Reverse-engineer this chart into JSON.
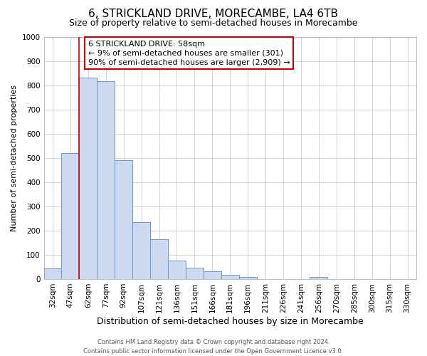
{
  "title": "6, STRICKLAND DRIVE, MORECAMBE, LA4 6TB",
  "subtitle": "Size of property relative to semi-detached houses in Morecambe",
  "xlabel": "Distribution of semi-detached houses by size in Morecambe",
  "ylabel": "Number of semi-detached properties",
  "categories": [
    "32sqm",
    "47sqm",
    "62sqm",
    "77sqm",
    "92sqm",
    "107sqm",
    "121sqm",
    "136sqm",
    "151sqm",
    "166sqm",
    "181sqm",
    "196sqm",
    "211sqm",
    "226sqm",
    "241sqm",
    "256sqm",
    "270sqm",
    "285sqm",
    "300sqm",
    "315sqm",
    "330sqm"
  ],
  "values": [
    43,
    520,
    830,
    815,
    490,
    235,
    163,
    75,
    47,
    33,
    18,
    10,
    0,
    0,
    0,
    8,
    0,
    0,
    0,
    0,
    0
  ],
  "bar_color": "#ccd9f0",
  "bar_edge_color": "#6699cc",
  "vline_color": "#cc0000",
  "vline_x": 1.5,
  "annotation_line1": "6 STRICKLAND DRIVE: 58sqm",
  "annotation_line2": "← 9% of semi-detached houses are smaller (301)",
  "annotation_line3": "90% of semi-detached houses are larger (2,909) →",
  "annotation_box_facecolor": "#ffffff",
  "annotation_box_edgecolor": "#cc0000",
  "ylim": [
    0,
    1000
  ],
  "yticks": [
    0,
    100,
    200,
    300,
    400,
    500,
    600,
    700,
    800,
    900,
    1000
  ],
  "footer_line1": "Contains HM Land Registry data © Crown copyright and database right 2024.",
  "footer_line2": "Contains public sector information licensed under the Open Government Licence v3.0.",
  "background_color": "#ffffff",
  "grid_color": "#cccccc",
  "title_fontsize": 11,
  "subtitle_fontsize": 9,
  "xlabel_fontsize": 9,
  "ylabel_fontsize": 8,
  "tick_fontsize": 7.5,
  "annotation_fontsize": 8,
  "footer_fontsize": 6
}
